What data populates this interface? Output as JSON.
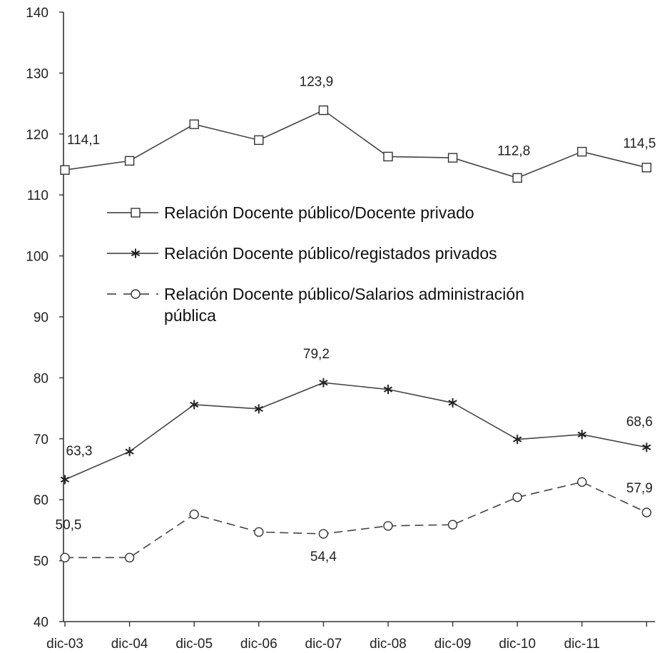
{
  "chart_data": {
    "type": "line",
    "categories": [
      "dic-03",
      "dic-04",
      "dic-05",
      "dic-06",
      "dic-07",
      "dic-08",
      "dic-09",
      "dic-10",
      "dic-11",
      ""
    ],
    "ylim": [
      40,
      140
    ],
    "yticks": [
      40,
      50,
      60,
      70,
      80,
      90,
      100,
      110,
      120,
      130,
      140
    ],
    "grid": false,
    "legend_position": "center",
    "series": [
      {
        "name": "Relación Docente público/Docente privado",
        "marker": "square",
        "line_style": "solid",
        "values": [
          114.1,
          115.6,
          121.6,
          119.0,
          123.9,
          116.3,
          116.1,
          112.8,
          117.1,
          114.5
        ],
        "labels": [
          {
            "index": 0,
            "text": "114,1"
          },
          {
            "index": 4,
            "text": "123,9"
          },
          {
            "index": 7,
            "text": "112,8"
          },
          {
            "index": 9,
            "text": "114,5"
          }
        ]
      },
      {
        "name": "Relación Docente público/registados privados",
        "marker": "asterisk",
        "line_style": "solid",
        "values": [
          63.3,
          67.9,
          75.6,
          74.9,
          79.2,
          78.1,
          75.9,
          69.9,
          70.7,
          68.6
        ],
        "labels": [
          {
            "index": 0,
            "text": "63,3"
          },
          {
            "index": 4,
            "text": "79,2"
          },
          {
            "index": 9,
            "text": "68,6"
          }
        ]
      },
      {
        "name": "Relación Docente público/Salarios administración pública",
        "marker": "circle",
        "line_style": "dashed",
        "values": [
          50.5,
          50.5,
          57.6,
          54.7,
          54.4,
          55.7,
          55.9,
          60.4,
          62.9,
          57.9
        ],
        "labels": [
          {
            "index": 0,
            "text": "50,5"
          },
          {
            "index": 4,
            "text": "54,4"
          },
          {
            "index": 9,
            "text": "57,9"
          }
        ]
      }
    ],
    "legend_lines": [
      [
        "Relación Docente público/Docente privado"
      ],
      [
        "Relación Docente público/registados privados"
      ],
      [
        "Relación Docente público/Salarios administración",
        "pública"
      ]
    ]
  }
}
